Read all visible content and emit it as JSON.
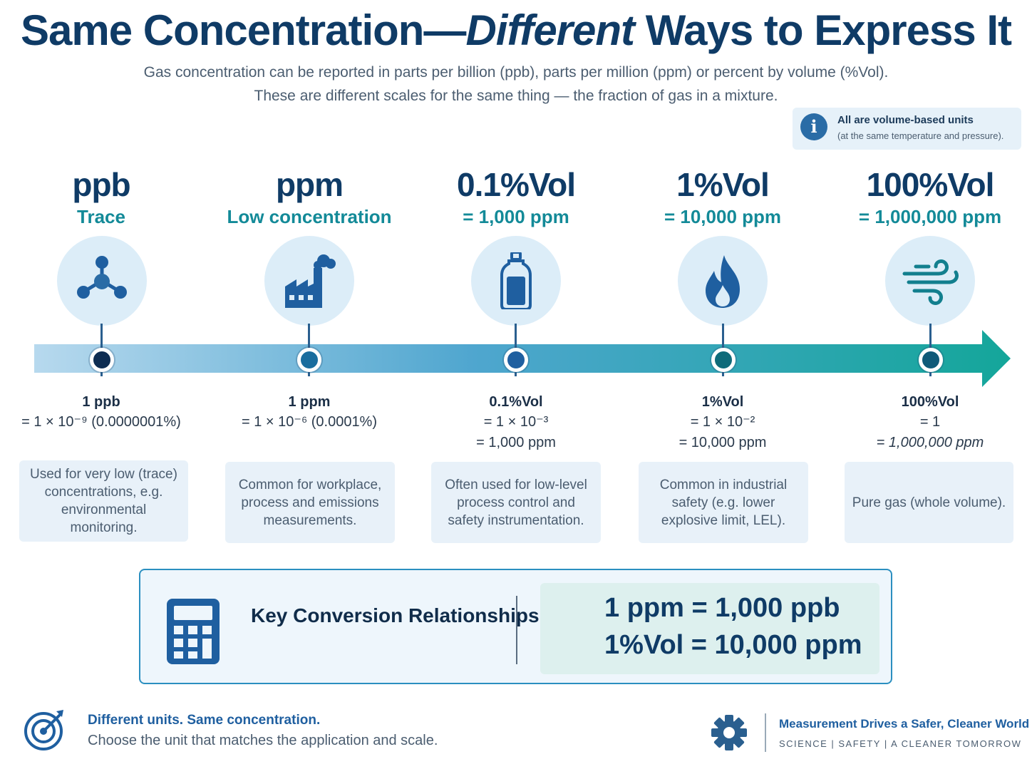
{
  "header": {
    "title_part1": "Same Concentration—",
    "title_part2": "Different",
    "title_part3": " Ways to Express It",
    "subtitle_line1": "Gas concentration can be reported in parts per billion (ppb), parts per million (ppm) or percent by volume (%Vol).",
    "subtitle_line2": "These are different scales for the same thing — the fraction of gas in a mixture."
  },
  "info": {
    "icon": "info-icon",
    "title": "All are volume-based units",
    "note": "(at the same temperature and pressure)."
  },
  "stages": [
    {
      "unit": "ppb",
      "subtitle": "Trace",
      "icon": "molecule-icon",
      "dot_color": "#0e2d52",
      "value_title": "1 ppb",
      "value_lines": [
        "= 1 × 10⁻⁹ (0.0000001%)"
      ],
      "description": "Used for very low (trace) concentrations, e.g. environmental monitoring."
    },
    {
      "unit": "ppm",
      "subtitle": "Low concentration",
      "icon": "factory-icon",
      "dot_color": "#1a6d9e",
      "value_title": "1 ppm",
      "value_lines": [
        "= 1 × 10⁻⁶ (0.0001%)"
      ],
      "description": "Common for workplace, process and emissions measurements."
    },
    {
      "unit": "0.1%Vol",
      "subtitle": "= 1,000 ppm",
      "icon": "gas-cylinder-icon",
      "dot_color": "#1f5fa0",
      "value_title": "0.1%Vol",
      "value_lines": [
        "= 1 × 10⁻³",
        "= 1,000 ppm"
      ],
      "description": "Often used for low-level process control and safety instrumentation."
    },
    {
      "unit": "1%Vol",
      "subtitle": "= 10,000 ppm",
      "icon": "flame-icon",
      "dot_color": "#0f6b7a",
      "value_title": "1%Vol",
      "value_lines": [
        "= 1 × 10⁻²",
        "= 10,000 ppm"
      ],
      "description": "Common in industrial safety (e.g. lower explosive limit, LEL)."
    },
    {
      "unit": "100%Vol",
      "subtitle": "= 1,000,000 ppm",
      "icon": "wind-icon",
      "dot_color": "#105a78",
      "value_title": "100%Vol",
      "value_lines": [
        "= 1",
        "= 1,000,000 ppm"
      ],
      "description": "Pure gas (whole volume)."
    }
  ],
  "key": {
    "icon": "calculator-icon",
    "label": "Key Conversion Relationships",
    "relation1": "1 ppm = 1,000  ppb",
    "relation2": "1%Vol = 10,000 ppm"
  },
  "footer": {
    "icon": "target-icon",
    "tagline_bold": "Different units. Same concentration.",
    "tagline": "Choose the unit that matches the application and scale.",
    "brand_icon": "gear-icon",
    "brand_title": "Measurement Drives a Safer, Cleaner World",
    "brand_sub": "SCIENCE  |  SAFETY  |  A CLEANER TOMORROW"
  }
}
